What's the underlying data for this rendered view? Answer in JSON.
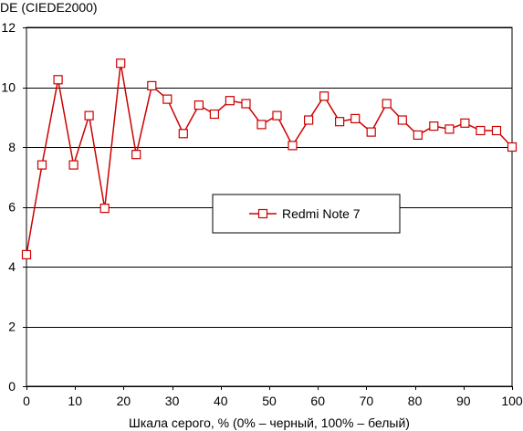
{
  "chart_data": {
    "type": "line",
    "title": "",
    "ylabel": "DE (CIEDE2000)",
    "xlabel": "Шкала серого, % (0% – черный, 100% – белый)",
    "xlim": [
      0,
      100
    ],
    "ylim": [
      0,
      12
    ],
    "xticks": [
      0,
      10,
      20,
      30,
      40,
      50,
      60,
      70,
      80,
      90,
      100
    ],
    "yticks": [
      0,
      2,
      4,
      6,
      8,
      10,
      12
    ],
    "grid": "horizontal",
    "legend_position": "center-right",
    "series": [
      {
        "name": "Redmi Note 7",
        "color": "#cc0000",
        "marker": "square",
        "x": [
          0,
          3.2,
          6.5,
          9.7,
          12.9,
          16.1,
          19.4,
          22.6,
          25.8,
          29.0,
          32.3,
          35.5,
          38.7,
          41.9,
          45.2,
          48.4,
          51.6,
          54.8,
          58.1,
          61.3,
          64.5,
          67.7,
          71.0,
          74.2,
          77.4,
          80.6,
          83.9,
          87.1,
          90.3,
          93.5,
          96.8,
          100
        ],
        "y": [
          4.4,
          7.4,
          10.25,
          7.4,
          9.05,
          5.95,
          10.8,
          7.75,
          10.05,
          9.6,
          8.45,
          9.4,
          9.1,
          9.55,
          9.45,
          8.75,
          9.05,
          8.05,
          8.9,
          9.7,
          8.85,
          8.95,
          8.5,
          9.45,
          8.9,
          8.4,
          8.7,
          8.6,
          8.8,
          8.55,
          8.55,
          8.0
        ]
      }
    ]
  }
}
